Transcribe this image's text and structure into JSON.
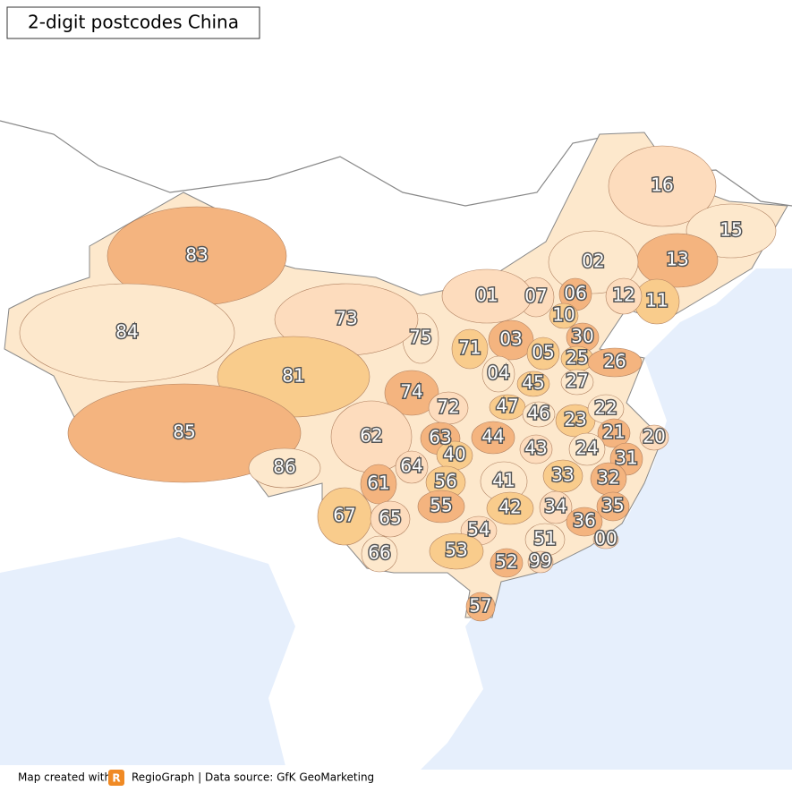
{
  "title": "2-digit postcodes China",
  "regions": [
    {
      "label": "16",
      "color": "#fddcbd"
    },
    {
      "label": "15",
      "color": "#fde8cc"
    },
    {
      "label": "13",
      "color": "#f4b47f"
    },
    {
      "label": "02",
      "color": "#fde8cc"
    },
    {
      "label": "11",
      "color": "#f9cc8c"
    },
    {
      "label": "12",
      "color": "#fddcbd"
    },
    {
      "label": "06",
      "color": "#f4b47f"
    },
    {
      "label": "07",
      "color": "#fddcbd"
    },
    {
      "label": "01",
      "color": "#fddcbd"
    },
    {
      "label": "10",
      "color": "#f9cc8c"
    },
    {
      "label": "30",
      "color": "#f4b47f"
    },
    {
      "label": "03",
      "color": "#f4b47f"
    },
    {
      "label": "05",
      "color": "#f9cc8c"
    },
    {
      "label": "71",
      "color": "#f9cc8c"
    },
    {
      "label": "75",
      "color": "#fde8cc"
    },
    {
      "label": "73",
      "color": "#fddcbd"
    },
    {
      "label": "83",
      "color": "#f4b47f"
    },
    {
      "label": "84",
      "color": "#fde8cc"
    },
    {
      "label": "81",
      "color": "#f9cc8c"
    },
    {
      "label": "74",
      "color": "#f4b47f"
    },
    {
      "label": "04",
      "color": "#fde8cc"
    },
    {
      "label": "25",
      "color": "#f9cc8c"
    },
    {
      "label": "26",
      "color": "#f4b47f"
    },
    {
      "label": "45",
      "color": "#f9cc8c"
    },
    {
      "label": "27",
      "color": "#fde8cc"
    },
    {
      "label": "72",
      "color": "#fddcbd"
    },
    {
      "label": "47",
      "color": "#f9cc8c"
    },
    {
      "label": "46",
      "color": "#fde8cc"
    },
    {
      "label": "23",
      "color": "#f9cc8c"
    },
    {
      "label": "22",
      "color": "#fde8cc"
    },
    {
      "label": "21",
      "color": "#f4b47f"
    },
    {
      "label": "20",
      "color": "#fddcbd"
    },
    {
      "label": "62",
      "color": "#fddcbd"
    },
    {
      "label": "63",
      "color": "#f4b47f"
    },
    {
      "label": "44",
      "color": "#f4b47f"
    },
    {
      "label": "43",
      "color": "#fddcbd"
    },
    {
      "label": "24",
      "color": "#fde8cc"
    },
    {
      "label": "31",
      "color": "#f4b47f"
    },
    {
      "label": "85",
      "color": "#f4b47f"
    },
    {
      "label": "86",
      "color": "#fde8cc"
    },
    {
      "label": "64",
      "color": "#fddcbd"
    },
    {
      "label": "40",
      "color": "#f9cc8c"
    },
    {
      "label": "56",
      "color": "#f9cc8c"
    },
    {
      "label": "41",
      "color": "#fde8cc"
    },
    {
      "label": "33",
      "color": "#f9cc8c"
    },
    {
      "label": "32",
      "color": "#f4b47f"
    },
    {
      "label": "61",
      "color": "#f4b47f"
    },
    {
      "label": "55",
      "color": "#f4b47f"
    },
    {
      "label": "42",
      "color": "#f9cc8c"
    },
    {
      "label": "34",
      "color": "#fddcbd"
    },
    {
      "label": "35",
      "color": "#f4b47f"
    },
    {
      "label": "36",
      "color": "#f4b47f"
    },
    {
      "label": "67",
      "color": "#f9cc8c"
    },
    {
      "label": "65",
      "color": "#fddcbd"
    },
    {
      "label": "54",
      "color": "#fddcbd"
    },
    {
      "label": "51",
      "color": "#fde8cc"
    },
    {
      "label": "00",
      "color": "#fddcbd"
    },
    {
      "label": "53",
      "color": "#f9cc8c"
    },
    {
      "label": "66",
      "color": "#fde8cc"
    },
    {
      "label": "52",
      "color": "#f4b47f"
    },
    {
      "label": "99",
      "color": "#fddcbd"
    },
    {
      "label": "57",
      "color": "#f4b47f"
    }
  ],
  "footer": {
    "prefix": "Map created with",
    "logo": "R",
    "source": "RegioGraph | Data source: GfK GeoMarketing"
  }
}
